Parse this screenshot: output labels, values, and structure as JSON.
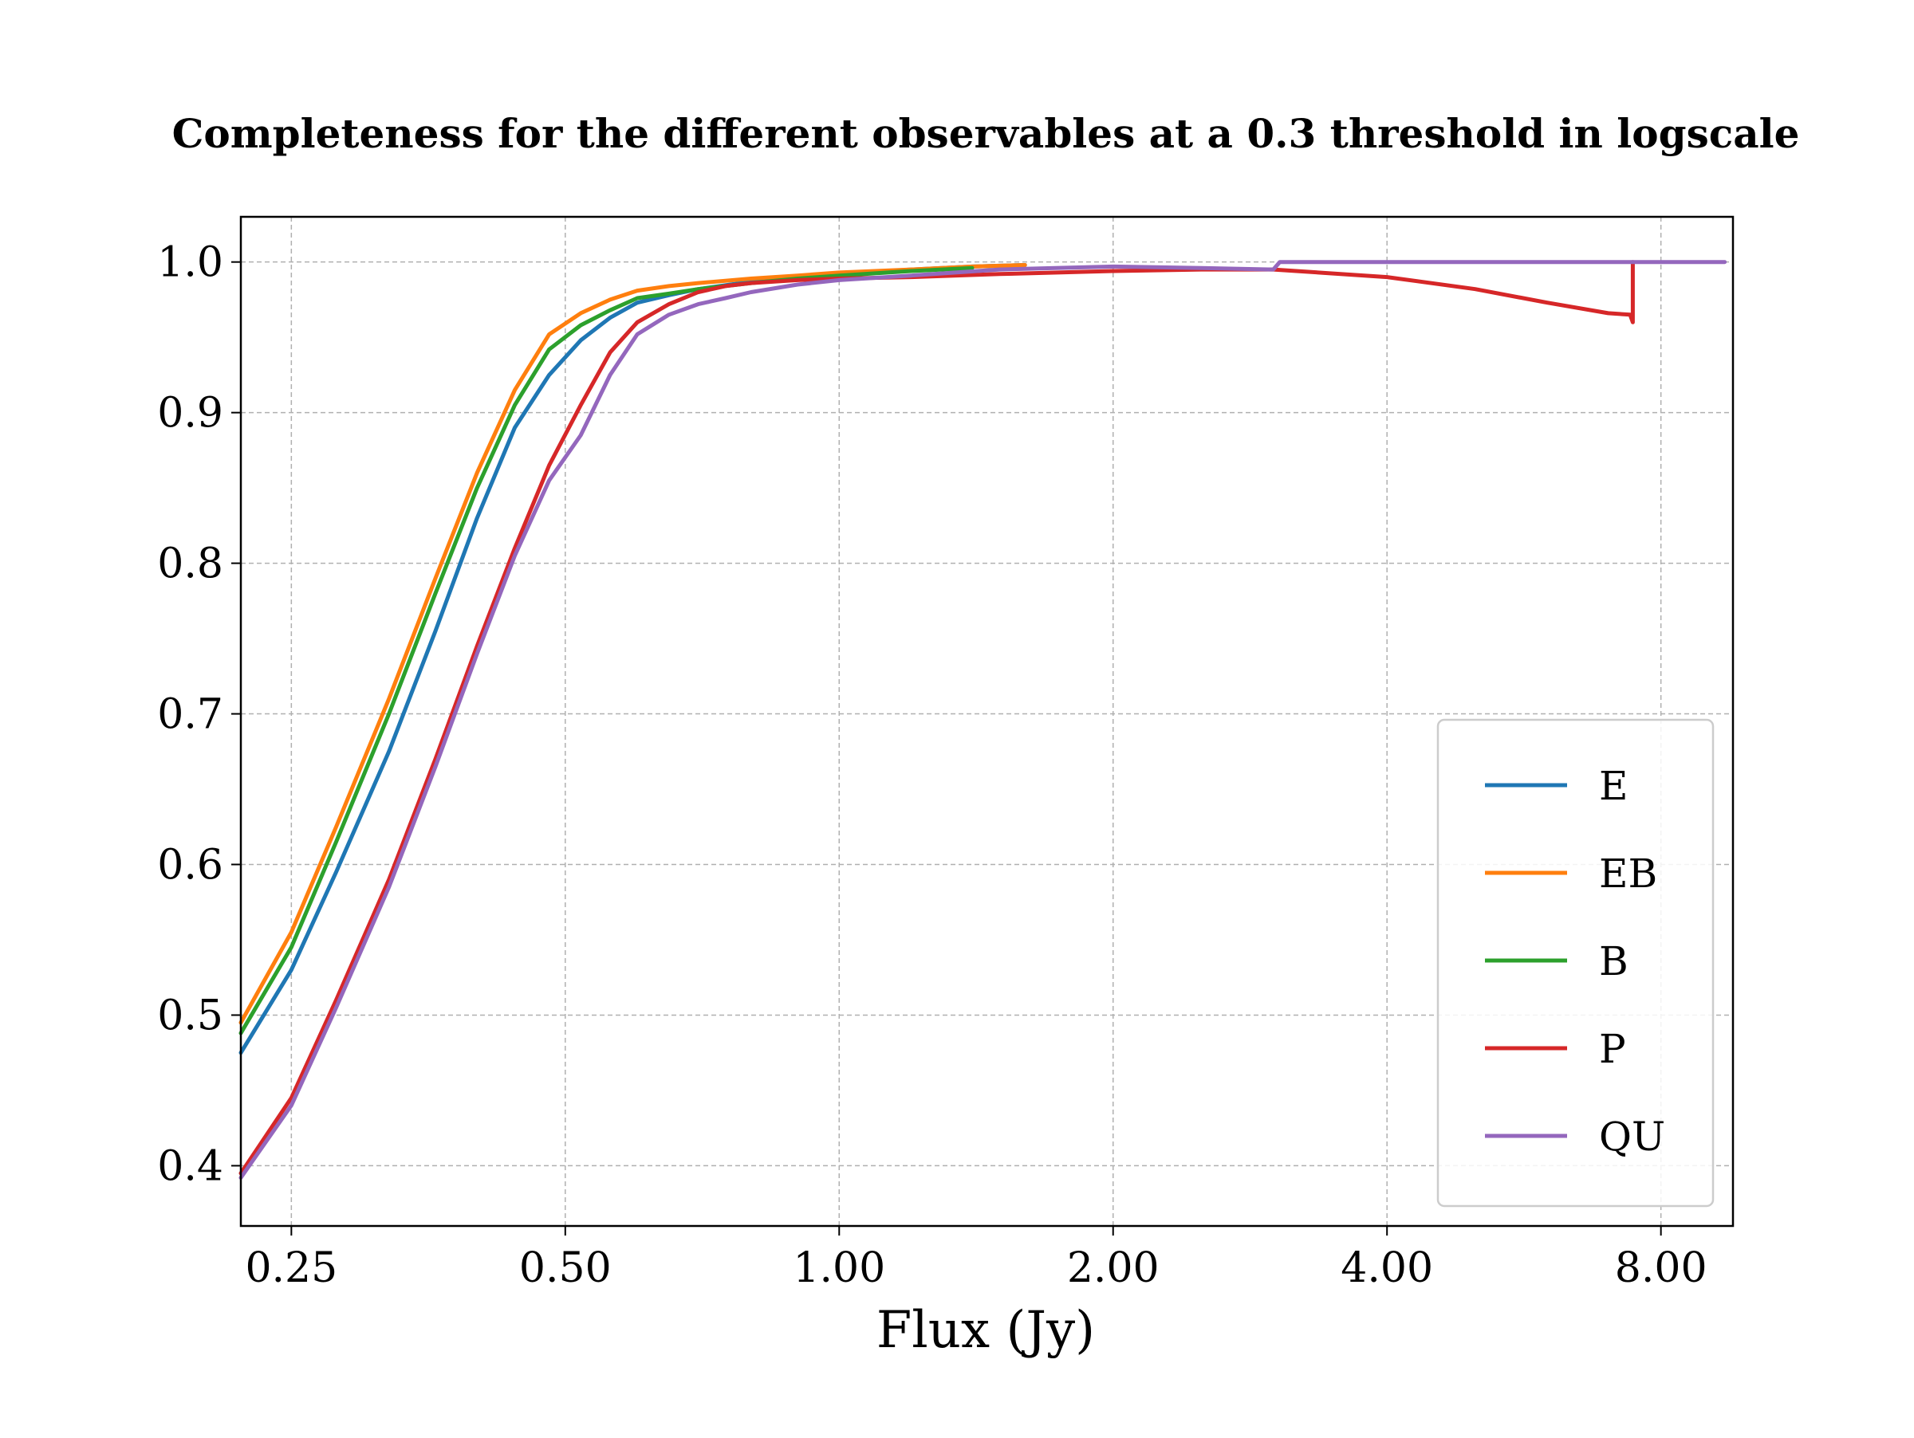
{
  "chart_data": {
    "type": "line",
    "title": "Completeness for the different observables at a 0.3 threshold in logscale",
    "xlabel": "Flux (Jy)",
    "ylabel": "",
    "x_scale": "log",
    "xlim": [
      0.22,
      9.6
    ],
    "ylim": [
      0.36,
      1.03
    ],
    "x_ticks": [
      0.25,
      0.5,
      1.0,
      2.0,
      4.0,
      8.0
    ],
    "x_tick_labels": [
      "0.25",
      "0.50",
      "1.00",
      "2.00",
      "4.00",
      "8.00"
    ],
    "y_ticks": [
      0.4,
      0.5,
      0.6,
      0.7,
      0.8,
      0.9,
      1.0
    ],
    "y_tick_labels": [
      "0.4",
      "0.5",
      "0.6",
      "0.7",
      "0.8",
      "0.9",
      "1.0"
    ],
    "grid": true,
    "legend_position": "lower right",
    "series": [
      {
        "name": "E",
        "color": "#1f77b4",
        "x": [
          0.22,
          0.25,
          0.28,
          0.32,
          0.36,
          0.4,
          0.44,
          0.48,
          0.52,
          0.56,
          0.6,
          0.65,
          0.7,
          0.8,
          0.9,
          1.0,
          1.2,
          1.4,
          1.6
        ],
        "y": [
          0.475,
          0.53,
          0.595,
          0.675,
          0.755,
          0.83,
          0.89,
          0.925,
          0.948,
          0.963,
          0.973,
          0.978,
          0.982,
          0.987,
          0.99,
          0.992,
          0.995,
          0.997,
          0.998
        ]
      },
      {
        "name": "EB",
        "color": "#ff7f0e",
        "x": [
          0.22,
          0.25,
          0.28,
          0.32,
          0.36,
          0.4,
          0.44,
          0.48,
          0.52,
          0.56,
          0.6,
          0.65,
          0.7,
          0.8,
          0.9,
          1.0,
          1.2,
          1.4,
          1.6
        ],
        "y": [
          0.495,
          0.555,
          0.625,
          0.71,
          0.79,
          0.86,
          0.915,
          0.952,
          0.966,
          0.975,
          0.981,
          0.984,
          0.986,
          0.989,
          0.991,
          0.993,
          0.995,
          0.997,
          0.998
        ]
      },
      {
        "name": "B",
        "color": "#2ca02c",
        "x": [
          0.22,
          0.25,
          0.28,
          0.32,
          0.36,
          0.4,
          0.44,
          0.48,
          0.52,
          0.56,
          0.6,
          0.65,
          0.7,
          0.8,
          0.9,
          1.0,
          1.2,
          1.4
        ],
        "y": [
          0.488,
          0.545,
          0.615,
          0.7,
          0.78,
          0.85,
          0.905,
          0.942,
          0.958,
          0.968,
          0.976,
          0.979,
          0.982,
          0.986,
          0.989,
          0.991,
          0.994,
          0.996
        ]
      },
      {
        "name": "P",
        "color": "#d62728",
        "x": [
          0.22,
          0.25,
          0.28,
          0.32,
          0.36,
          0.4,
          0.44,
          0.48,
          0.52,
          0.56,
          0.6,
          0.65,
          0.7,
          0.75,
          0.8,
          0.9,
          1.0,
          1.2,
          1.5,
          2.0,
          2.5,
          3.0,
          4.0,
          5.0,
          6.0,
          7.0,
          7.4,
          7.45,
          7.45
        ],
        "y": [
          0.395,
          0.445,
          0.51,
          0.59,
          0.67,
          0.745,
          0.81,
          0.865,
          0.905,
          0.94,
          0.96,
          0.972,
          0.98,
          0.984,
          0.986,
          0.988,
          0.989,
          0.99,
          0.992,
          0.994,
          0.995,
          0.995,
          0.99,
          0.982,
          0.973,
          0.966,
          0.965,
          0.96,
          1.0
        ]
      },
      {
        "name": "QU",
        "color": "#9467bd",
        "x": [
          0.22,
          0.25,
          0.28,
          0.32,
          0.36,
          0.4,
          0.44,
          0.48,
          0.52,
          0.56,
          0.6,
          0.65,
          0.7,
          0.75,
          0.8,
          0.9,
          1.0,
          1.2,
          1.5,
          2.0,
          2.5,
          3.0,
          3.05,
          4.0,
          6.0,
          9.4
        ],
        "y": [
          0.392,
          0.44,
          0.505,
          0.585,
          0.665,
          0.74,
          0.805,
          0.855,
          0.885,
          0.925,
          0.952,
          0.965,
          0.972,
          0.976,
          0.98,
          0.985,
          0.988,
          0.991,
          0.995,
          0.997,
          0.996,
          0.995,
          1.0,
          1.0,
          1.0,
          1.0
        ]
      }
    ]
  }
}
